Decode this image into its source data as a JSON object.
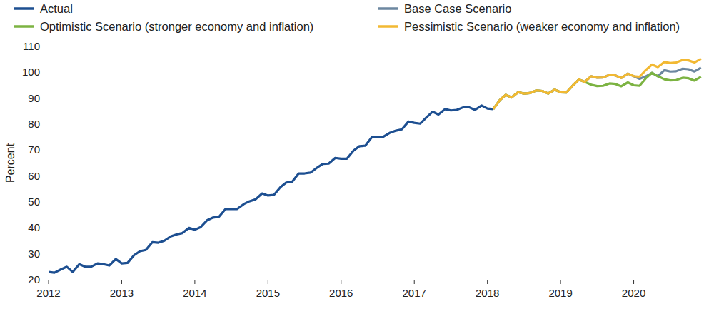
{
  "chart_data": {
    "type": "line",
    "y_label": "Percent",
    "legend": "top",
    "grid": false,
    "xlim": [
      2012,
      2021
    ],
    "xticks": [
      2012,
      2013,
      2014,
      2015,
      2016,
      2017,
      2018,
      2019,
      2020
    ],
    "ylim": [
      20,
      110
    ],
    "yticks": [
      20,
      30,
      40,
      50,
      60,
      70,
      80,
      90,
      100,
      110
    ],
    "x": [
      2012,
      2012.08,
      2012.17,
      2012.25,
      2012.33,
      2012.42,
      2012.5,
      2012.58,
      2012.67,
      2012.75,
      2012.83,
      2012.92,
      2013,
      2013.08,
      2013.17,
      2013.25,
      2013.33,
      2013.42,
      2013.5,
      2013.58,
      2013.67,
      2013.75,
      2013.83,
      2013.92,
      2014,
      2014.08,
      2014.17,
      2014.25,
      2014.33,
      2014.42,
      2014.5,
      2014.58,
      2014.67,
      2014.75,
      2014.83,
      2014.92,
      2015,
      2015.08,
      2015.17,
      2015.25,
      2015.33,
      2015.42,
      2015.5,
      2015.58,
      2015.67,
      2015.75,
      2015.83,
      2015.92,
      2016,
      2016.08,
      2016.17,
      2016.25,
      2016.33,
      2016.42,
      2016.5,
      2016.58,
      2016.67,
      2016.75,
      2016.83,
      2016.92,
      2017,
      2017.08,
      2017.17,
      2017.25,
      2017.33,
      2017.42,
      2017.5,
      2017.58,
      2017.67,
      2017.75,
      2017.83,
      2017.92,
      2018,
      2018.08,
      2018.17,
      2018.25,
      2018.33,
      2018.42,
      2018.5,
      2018.58,
      2018.67,
      2018.75,
      2018.83,
      2018.92,
      2019,
      2019.08,
      2019.17,
      2019.25,
      2019.33,
      2019.42,
      2019.5,
      2019.58,
      2019.67,
      2019.75,
      2019.83,
      2019.92,
      2020,
      2020.08,
      2020.17,
      2020.25,
      2020.33,
      2020.42,
      2020.5,
      2020.58,
      2020.67,
      2020.75,
      2020.83,
      2020.92
    ],
    "series": [
      {
        "name": "Actual",
        "color": "#1d4f91",
        "values": [
          23,
          22.7,
          24,
          25,
          23,
          26,
          25,
          25,
          26.3,
          26,
          25.5,
          28,
          26.3,
          26.5,
          29.5,
          31,
          31.5,
          34.5,
          34.3,
          35,
          36.7,
          37.5,
          38,
          40,
          39.3,
          40.3,
          43,
          44,
          44.3,
          47.3,
          47.3,
          47.3,
          49.2,
          50.3,
          51,
          53.3,
          52.5,
          52.7,
          55.7,
          57.5,
          57.8,
          61,
          61,
          61.3,
          63.2,
          64.7,
          64.8,
          67,
          66.7,
          66.7,
          69.8,
          71.5,
          71.7,
          75,
          75,
          75.2,
          76.7,
          77.5,
          78,
          81,
          80.5,
          80.2,
          82.7,
          84.8,
          83.7,
          85.8,
          85.3,
          85.5,
          86.5,
          86.5,
          85.5,
          87.2,
          86,
          85.8,
          null,
          null,
          null,
          null,
          null,
          null,
          null,
          null,
          null,
          null,
          null,
          null,
          null,
          null,
          null,
          null,
          null,
          null,
          null,
          null,
          null,
          null,
          null,
          null,
          null,
          null,
          null,
          null,
          null,
          null,
          null,
          null,
          null,
          null
        ]
      },
      {
        "name": "Base Case Scenario",
        "color": "#6c87a0",
        "values": [
          null,
          null,
          null,
          null,
          null,
          null,
          null,
          null,
          null,
          null,
          null,
          null,
          null,
          null,
          null,
          null,
          null,
          null,
          null,
          null,
          null,
          null,
          null,
          null,
          null,
          null,
          null,
          null,
          null,
          null,
          null,
          null,
          null,
          null,
          null,
          null,
          null,
          null,
          null,
          null,
          null,
          null,
          null,
          null,
          null,
          null,
          null,
          null,
          null,
          null,
          null,
          null,
          null,
          null,
          null,
          null,
          null,
          null,
          null,
          null,
          null,
          null,
          null,
          null,
          null,
          null,
          null,
          null,
          null,
          null,
          null,
          null,
          null,
          85.8,
          89.3,
          91.3,
          90.3,
          92.3,
          91.8,
          92,
          93,
          92.8,
          91.8,
          93.3,
          92.3,
          92.2,
          95,
          97.2,
          96.3,
          98.5,
          97.9,
          98,
          99,
          98.8,
          97.8,
          99.5,
          98.5,
          97.5,
          98.5,
          99.8,
          98.5,
          100.8,
          100.3,
          100.4,
          101.4,
          101.2,
          100.3,
          101.8
        ]
      },
      {
        "name": "Optimistic Scenario (stronger economy and inflation)",
        "color": "#7cb342",
        "values": [
          null,
          null,
          null,
          null,
          null,
          null,
          null,
          null,
          null,
          null,
          null,
          null,
          null,
          null,
          null,
          null,
          null,
          null,
          null,
          null,
          null,
          null,
          null,
          null,
          null,
          null,
          null,
          null,
          null,
          null,
          null,
          null,
          null,
          null,
          null,
          null,
          null,
          null,
          null,
          null,
          null,
          null,
          null,
          null,
          null,
          null,
          null,
          null,
          null,
          null,
          null,
          null,
          null,
          null,
          null,
          null,
          null,
          null,
          null,
          null,
          null,
          null,
          null,
          null,
          null,
          null,
          null,
          null,
          null,
          null,
          null,
          null,
          null,
          85.8,
          89.3,
          91.3,
          90.3,
          92.3,
          91.8,
          92,
          93,
          92.8,
          91.8,
          93.3,
          92.3,
          92.2,
          95,
          97.2,
          96.3,
          95.2,
          94.7,
          94.8,
          95.7,
          95.5,
          94.6,
          96.1,
          95,
          94.8,
          97.8,
          99.8,
          98.5,
          97.3,
          96.9,
          97,
          97.9,
          97.7,
          96.8,
          98.3
        ]
      },
      {
        "name": "Pessimistic Scenario (weaker economy and inflation)",
        "color": "#f2b933",
        "values": [
          null,
          null,
          null,
          null,
          null,
          null,
          null,
          null,
          null,
          null,
          null,
          null,
          null,
          null,
          null,
          null,
          null,
          null,
          null,
          null,
          null,
          null,
          null,
          null,
          null,
          null,
          null,
          null,
          null,
          null,
          null,
          null,
          null,
          null,
          null,
          null,
          null,
          null,
          null,
          null,
          null,
          null,
          null,
          null,
          null,
          null,
          null,
          null,
          null,
          null,
          null,
          null,
          null,
          null,
          null,
          null,
          null,
          null,
          null,
          null,
          null,
          null,
          null,
          null,
          null,
          null,
          null,
          null,
          null,
          null,
          null,
          null,
          null,
          85.8,
          89.3,
          91.3,
          90.3,
          92.3,
          91.8,
          92,
          93,
          92.8,
          91.8,
          93.3,
          92.3,
          92.2,
          95,
          97.2,
          96.3,
          98.5,
          97.9,
          98,
          99,
          98.8,
          97.8,
          99.5,
          98.5,
          98.3,
          101,
          103,
          102,
          104,
          103.6,
          103.8,
          104.8,
          104.6,
          103.8,
          105.2
        ]
      }
    ]
  }
}
